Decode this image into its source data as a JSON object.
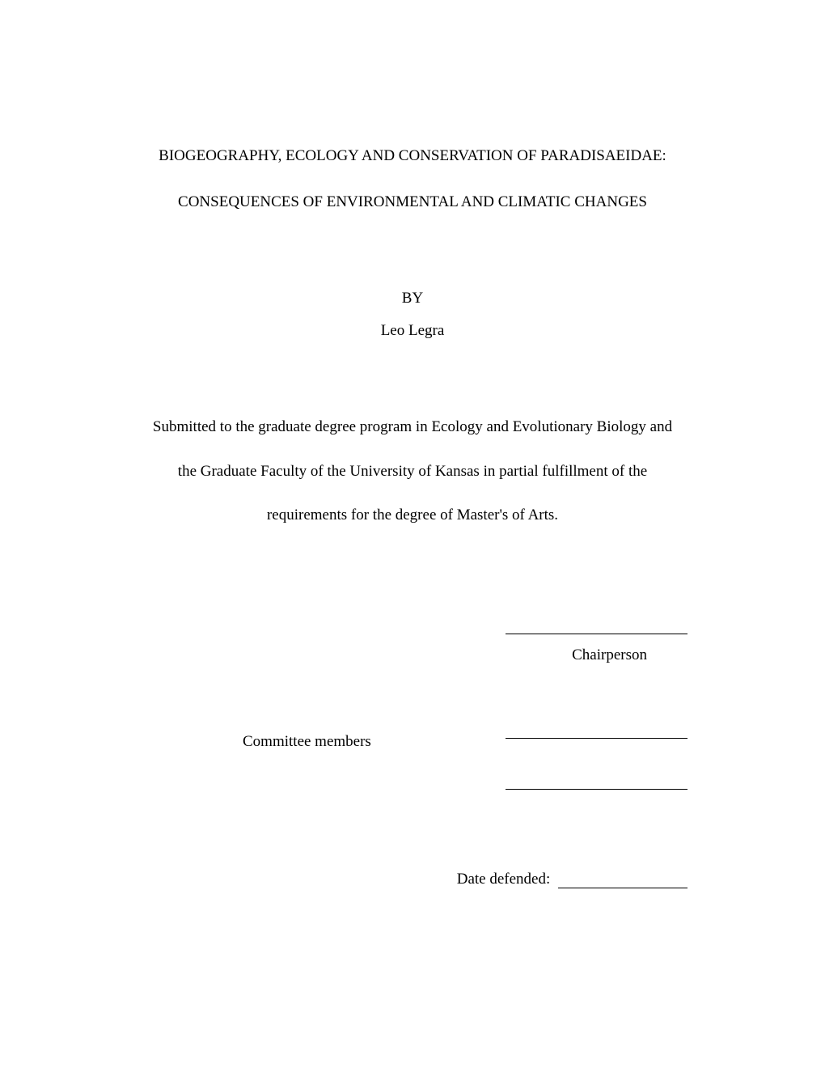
{
  "title": {
    "line1": "BIOGEOGRAPHY, ECOLOGY AND CONSERVATION OF PARADISAEIDAE:",
    "line2": "CONSEQUENCES OF ENVIRONMENTAL AND CLIMATIC CHANGES"
  },
  "by_label": "BY",
  "author": "Leo Legra",
  "submission": {
    "line1": "Submitted to the graduate degree program in Ecology and Evolutionary Biology and",
    "line2": "the Graduate Faculty of the University of Kansas in partial fulfillment of the",
    "line3": "requirements for the degree of Master's of Arts."
  },
  "chairperson_label": "Chairperson",
  "committee_label": "Committee members",
  "date_label": "Date defended:",
  "colors": {
    "background": "#ffffff",
    "text": "#000000",
    "line": "#000000"
  },
  "typography": {
    "font_family": "Times New Roman",
    "base_fontsize": 19
  }
}
